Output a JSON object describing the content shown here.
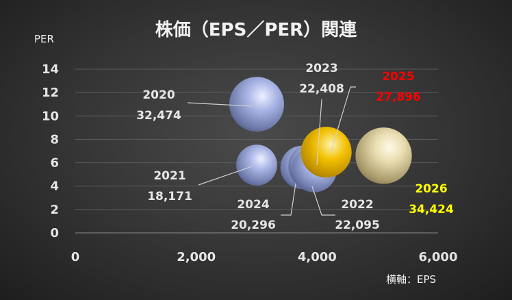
{
  "chart_data": {
    "type": "bubble",
    "title": "株価（EPS／PER）関連",
    "ylabel": "PER",
    "xlabel": "横軸：EPS",
    "xlim": [
      0,
      6000
    ],
    "ylim": [
      0,
      14
    ],
    "xticks": [
      "0",
      "2,000",
      "4,000",
      "6,000"
    ],
    "yticks": [
      "0",
      "2",
      "4",
      "6",
      "8",
      "10",
      "12",
      "14"
    ],
    "grid": true,
    "points": [
      {
        "year": "2020",
        "size_label": "32,474",
        "eps": 3000,
        "per": 11.0,
        "size": 32474,
        "label_color": "#e6e6e6",
        "style": "blue"
      },
      {
        "year": "2021",
        "size_label": "18,171",
        "eps": 3000,
        "per": 5.8,
        "size": 18171,
        "label_color": "#e6e6e6",
        "style": "blue"
      },
      {
        "year": "2022",
        "size_label": "22,095",
        "eps": 3950,
        "per": 5.4,
        "size": 22095,
        "label_color": "#e6e6e6",
        "style": "blue"
      },
      {
        "year": "2023",
        "size_label": "22,408",
        "eps": 3900,
        "per": 5.7,
        "size": 22408,
        "label_color": "#e6e6e6",
        "style": "blue"
      },
      {
        "year": "2024",
        "size_label": "20,296",
        "eps": 3750,
        "per": 5.6,
        "size": 20296,
        "label_color": "#e6e6e6",
        "style": "blue"
      },
      {
        "year": "2025",
        "size_label": "27,896",
        "eps": 4150,
        "per": 6.9,
        "size": 27896,
        "label_color": "#ff0000",
        "style": "gold"
      },
      {
        "year": "2026",
        "size_label": "34,424",
        "eps": 5100,
        "per": 6.6,
        "size": 34424,
        "label_color": "#ffff00",
        "style": "pale-gold"
      }
    ]
  }
}
